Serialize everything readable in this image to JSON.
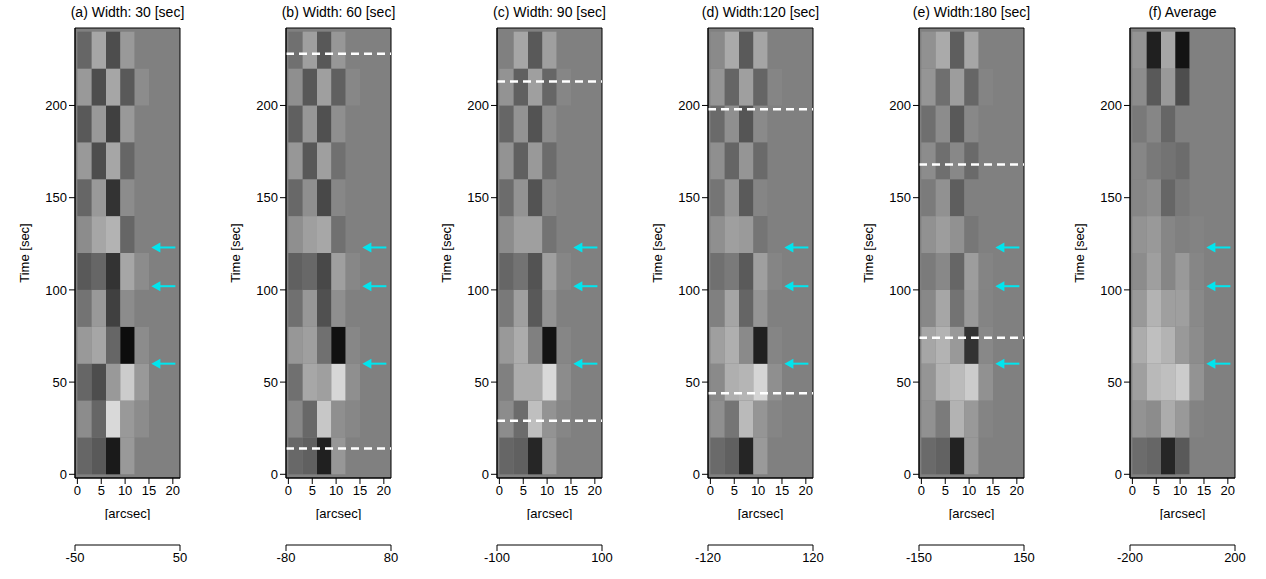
{
  "chart_data": [
    {
      "type": "heatmap",
      "title": "(a) Width: 30 [sec]",
      "x_label": "[arcsec]",
      "y_label": "Time [sec]",
      "xlim": [
        -0.5,
        21.5
      ],
      "ylim": [
        -2,
        242
      ],
      "xticks": [
        0,
        5,
        10,
        15,
        20
      ],
      "yticks": [
        0,
        50,
        100,
        150,
        200
      ],
      "cell_x_edges": [
        0,
        3,
        6,
        9,
        12,
        15,
        18,
        21
      ],
      "cell_y_edges": [
        0,
        20,
        40,
        60,
        80,
        100,
        120,
        140,
        160,
        180,
        200,
        220,
        240
      ],
      "cells": [
        [
          -10,
          -15,
          -40,
          10,
          0,
          0,
          0
        ],
        [
          5,
          -10,
          35,
          10,
          5,
          0,
          0
        ],
        [
          -10,
          -20,
          10,
          30,
          10,
          0,
          0
        ],
        [
          10,
          15,
          -10,
          -45,
          5,
          0,
          0
        ],
        [
          -5,
          10,
          -25,
          5,
          0,
          0,
          0
        ],
        [
          -15,
          -10,
          -30,
          15,
          5,
          0,
          0
        ],
        [
          5,
          15,
          20,
          -10,
          0,
          0,
          0
        ],
        [
          -10,
          10,
          -30,
          5,
          0,
          0,
          0
        ],
        [
          10,
          -20,
          15,
          -10,
          0,
          0,
          0
        ],
        [
          -15,
          10,
          -25,
          10,
          0,
          0,
          0
        ],
        [
          10,
          -20,
          15,
          -15,
          5,
          0,
          0
        ],
        [
          -10,
          15,
          -20,
          10,
          0,
          0,
          0
        ]
      ],
      "colorbar_range": [
        -50,
        50
      ],
      "colorbar_ticks": [
        -50,
        50
      ],
      "dashed_lines": [],
      "arrows": [
        {
          "x": 15.5,
          "y": 123
        },
        {
          "x": 15.5,
          "y": 102
        },
        {
          "x": 15.5,
          "y": 60
        }
      ]
    },
    {
      "type": "heatmap",
      "title": "(b) Width: 60 [sec]",
      "x_label": "[arcsec]",
      "y_label": "Time [sec]",
      "xlim": [
        -0.5,
        21.5
      ],
      "ylim": [
        -2,
        242
      ],
      "xticks": [
        0,
        5,
        10,
        15,
        20
      ],
      "yticks": [
        0,
        50,
        100,
        150,
        200
      ],
      "cell_x_edges": [
        0,
        3,
        6,
        9,
        12,
        15,
        18,
        21
      ],
      "cell_y_edges": [
        0,
        20,
        40,
        60,
        80,
        100,
        120,
        140,
        160,
        180,
        200,
        220,
        240
      ],
      "cells": [
        [
          -15,
          -20,
          -60,
          15,
          0,
          0,
          0
        ],
        [
          5,
          -15,
          45,
          10,
          5,
          0,
          0
        ],
        [
          -10,
          25,
          20,
          55,
          10,
          0,
          0
        ],
        [
          15,
          20,
          -10,
          -70,
          5,
          0,
          0
        ],
        [
          -10,
          15,
          -30,
          10,
          0,
          0,
          0
        ],
        [
          -20,
          -15,
          -35,
          20,
          5,
          0,
          0
        ],
        [
          10,
          20,
          25,
          -10,
          0,
          0,
          0
        ],
        [
          -15,
          10,
          -35,
          5,
          0,
          0,
          0
        ],
        [
          15,
          -25,
          20,
          -10,
          0,
          0,
          0
        ],
        [
          -20,
          15,
          -30,
          10,
          0,
          0,
          0
        ],
        [
          10,
          -25,
          20,
          -20,
          5,
          0,
          0
        ],
        [
          -10,
          20,
          -25,
          15,
          0,
          0,
          0
        ]
      ],
      "colorbar_range": [
        -80,
        80
      ],
      "colorbar_ticks": [
        -80,
        80
      ],
      "dashed_lines": [
        14,
        228
      ],
      "arrows": [
        {
          "x": 15.5,
          "y": 123
        },
        {
          "x": 15.5,
          "y": 102
        },
        {
          "x": 15.5,
          "y": 60
        }
      ]
    },
    {
      "type": "heatmap",
      "title": "(c) Width: 90 [sec]",
      "x_label": "[arcsec]",
      "y_label": "Time [sec]",
      "xlim": [
        -0.5,
        21.5
      ],
      "ylim": [
        -2,
        242
      ],
      "xticks": [
        0,
        5,
        10,
        15,
        20
      ],
      "yticks": [
        0,
        50,
        100,
        150,
        200
      ],
      "cell_x_edges": [
        0,
        3,
        6,
        9,
        12,
        15,
        18,
        21
      ],
      "cell_y_edges": [
        0,
        20,
        40,
        60,
        80,
        100,
        120,
        140,
        160,
        180,
        200,
        220,
        240
      ],
      "cells": [
        [
          -20,
          -25,
          -70,
          20,
          0,
          0,
          0
        ],
        [
          10,
          -15,
          50,
          15,
          5,
          0,
          0
        ],
        [
          0,
          35,
          35,
          70,
          10,
          0,
          0
        ],
        [
          20,
          35,
          0,
          -85,
          5,
          0,
          0
        ],
        [
          -5,
          25,
          -30,
          15,
          0,
          0,
          0
        ],
        [
          -20,
          -10,
          -35,
          25,
          5,
          0,
          0
        ],
        [
          10,
          25,
          25,
          -10,
          0,
          0,
          0
        ],
        [
          -15,
          15,
          -35,
          5,
          0,
          0,
          0
        ],
        [
          15,
          -25,
          20,
          -15,
          0,
          0,
          0
        ],
        [
          -20,
          15,
          -35,
          10,
          0,
          0,
          0
        ],
        [
          15,
          -25,
          25,
          -20,
          5,
          0,
          0
        ],
        [
          0,
          30,
          -30,
          25,
          0,
          0,
          0
        ]
      ],
      "colorbar_range": [
        -100,
        100
      ],
      "colorbar_ticks": [
        -100,
        100
      ],
      "dashed_lines": [
        29,
        213
      ],
      "arrows": [
        {
          "x": 15.5,
          "y": 123
        },
        {
          "x": 15.5,
          "y": 102
        },
        {
          "x": 15.5,
          "y": 60
        }
      ]
    },
    {
      "type": "heatmap",
      "title": "(d) Width:120 [sec]",
      "x_label": "[arcsec]",
      "y_label": "Time [sec]",
      "xlim": [
        -0.5,
        21.5
      ],
      "ylim": [
        -2,
        242
      ],
      "xticks": [
        0,
        5,
        10,
        15,
        20
      ],
      "yticks": [
        0,
        50,
        100,
        150,
        200
      ],
      "cell_x_edges": [
        0,
        3,
        6,
        9,
        12,
        15,
        18,
        21
      ],
      "cell_y_edges": [
        0,
        20,
        40,
        60,
        80,
        100,
        120,
        140,
        160,
        180,
        200,
        220,
        240
      ],
      "cells": [
        [
          -20,
          -30,
          -85,
          25,
          0,
          0,
          0
        ],
        [
          15,
          -10,
          55,
          20,
          5,
          0,
          0
        ],
        [
          10,
          45,
          50,
          80,
          15,
          0,
          0
        ],
        [
          30,
          45,
          10,
          -90,
          5,
          0,
          0
        ],
        [
          0,
          35,
          -25,
          20,
          0,
          0,
          0
        ],
        [
          -15,
          -5,
          -35,
          30,
          5,
          0,
          0
        ],
        [
          15,
          30,
          25,
          -10,
          0,
          0,
          0
        ],
        [
          -10,
          20,
          -35,
          5,
          0,
          0,
          0
        ],
        [
          15,
          -25,
          20,
          -20,
          0,
          0,
          0
        ],
        [
          -20,
          15,
          -40,
          10,
          0,
          0,
          0
        ],
        [
          20,
          -25,
          30,
          -25,
          5,
          0,
          0
        ],
        [
          10,
          40,
          -35,
          35,
          0,
          0,
          0
        ]
      ],
      "colorbar_range": [
        -120,
        120
      ],
      "colorbar_ticks": [
        -120,
        120
      ],
      "dashed_lines": [
        44,
        198
      ],
      "arrows": [
        {
          "x": 15.5,
          "y": 123
        },
        {
          "x": 15.5,
          "y": 102
        },
        {
          "x": 15.5,
          "y": 60
        }
      ]
    },
    {
      "type": "heatmap",
      "title": "(e) Width:180 [sec]",
      "x_label": "[arcsec]",
      "y_label": "Time [sec]",
      "xlim": [
        -0.5,
        21.5
      ],
      "ylim": [
        -2,
        242
      ],
      "xticks": [
        0,
        5,
        10,
        15,
        20
      ],
      "yticks": [
        0,
        50,
        100,
        150,
        200
      ],
      "cell_x_edges": [
        0,
        3,
        6,
        9,
        12,
        15,
        18,
        21
      ],
      "cell_y_edges": [
        0,
        20,
        40,
        60,
        80,
        100,
        120,
        140,
        160,
        180,
        200,
        220,
        240
      ],
      "cells": [
        [
          -25,
          -35,
          -110,
          30,
          0,
          0,
          0
        ],
        [
          20,
          -5,
          60,
          30,
          5,
          0,
          0
        ],
        [
          25,
          60,
          70,
          90,
          20,
          0,
          0
        ],
        [
          45,
          60,
          30,
          -90,
          10,
          0,
          0
        ],
        [
          10,
          45,
          -15,
          30,
          5,
          0,
          0
        ],
        [
          -5,
          10,
          -30,
          35,
          5,
          0,
          0
        ],
        [
          20,
          35,
          20,
          -10,
          0,
          0,
          0
        ],
        [
          -5,
          20,
          -40,
          0,
          0,
          0,
          0
        ],
        [
          15,
          -20,
          10,
          -25,
          0,
          0,
          0
        ],
        [
          -20,
          15,
          -45,
          10,
          0,
          0,
          0
        ],
        [
          25,
          -20,
          35,
          -30,
          5,
          0,
          0
        ],
        [
          20,
          50,
          -40,
          45,
          0,
          0,
          0
        ]
      ],
      "colorbar_range": [
        -150,
        150
      ],
      "colorbar_ticks": [
        -150,
        150
      ],
      "dashed_lines": [
        74,
        168
      ],
      "arrows": [
        {
          "x": 15.5,
          "y": 123
        },
        {
          "x": 15.5,
          "y": 102
        },
        {
          "x": 15.5,
          "y": 60
        }
      ]
    },
    {
      "type": "heatmap",
      "title": "(f) Average",
      "x_label": "[arcsec]",
      "y_label": "Time [sec]",
      "xlim": [
        -0.5,
        21.5
      ],
      "ylim": [
        -2,
        242
      ],
      "xticks": [
        0,
        5,
        10,
        15,
        20
      ],
      "yticks": [
        0,
        50,
        100,
        150,
        200
      ],
      "cell_x_edges": [
        0,
        3,
        6,
        9,
        12,
        15,
        18,
        21
      ],
      "cell_y_edges": [
        0,
        20,
        40,
        60,
        80,
        100,
        120,
        140,
        160,
        180,
        200,
        220,
        240
      ],
      "cells": [
        [
          -30,
          -40,
          -140,
          -60,
          0,
          0,
          0
        ],
        [
          30,
          20,
          70,
          40,
          5,
          0,
          0
        ],
        [
          50,
          90,
          100,
          120,
          30,
          0,
          0
        ],
        [
          70,
          100,
          80,
          40,
          20,
          0,
          0
        ],
        [
          40,
          80,
          50,
          50,
          15,
          0,
          0
        ],
        [
          20,
          50,
          10,
          40,
          10,
          0,
          0
        ],
        [
          30,
          40,
          10,
          0,
          5,
          0,
          0
        ],
        [
          10,
          20,
          -40,
          -10,
          0,
          0,
          0
        ],
        [
          10,
          -10,
          -20,
          -30,
          0,
          0,
          0
        ],
        [
          -10,
          10,
          -40,
          0,
          0,
          0,
          0
        ],
        [
          20,
          -60,
          40,
          -80,
          0,
          0,
          0
        ],
        [
          30,
          -150,
          60,
          -170,
          0,
          0,
          0
        ]
      ],
      "colorbar_range": [
        -200,
        200
      ],
      "colorbar_ticks": [
        -200,
        200
      ],
      "dashed_lines": [],
      "arrows": [
        {
          "x": 15.5,
          "y": 123
        },
        {
          "x": 15.5,
          "y": 102
        },
        {
          "x": 15.5,
          "y": 60
        }
      ]
    }
  ]
}
